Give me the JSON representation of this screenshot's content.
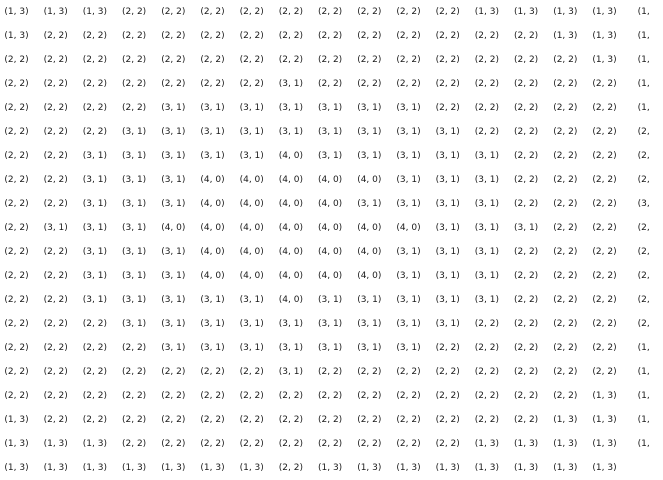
{
  "rows": [
    [
      "(1, 3)",
      "(1, 3)",
      "(1, 3)",
      "(2, 2)",
      "(2, 2)",
      "(2, 2)",
      "(2, 2)",
      "(2, 2)",
      "(2, 2)",
      "(2, 2)",
      "(2, 2)",
      "(2, 2)",
      "(1, 3)",
      "(1, 3)",
      "(1, 3)",
      "(1, 3)",
      "(1,"
    ],
    [
      "(1, 3)",
      "(2, 2)",
      "(2, 2)",
      "(2, 2)",
      "(2, 2)",
      "(2, 2)",
      "(2, 2)",
      "(2, 2)",
      "(2, 2)",
      "(2, 2)",
      "(2, 2)",
      "(2, 2)",
      "(2, 2)",
      "(2, 2)",
      "(1, 3)",
      "(1, 3)",
      "(1,"
    ],
    [
      "(2, 2)",
      "(2, 2)",
      "(2, 2)",
      "(2, 2)",
      "(2, 2)",
      "(2, 2)",
      "(2, 2)",
      "(2, 2)",
      "(2, 2)",
      "(2, 2)",
      "(2, 2)",
      "(2, 2)",
      "(2, 2)",
      "(2, 2)",
      "(2, 2)",
      "(1, 3)",
      "(1,"
    ],
    [
      "(2, 2)",
      "(2, 2)",
      "(2, 2)",
      "(2, 2)",
      "(2, 2)",
      "(2, 2)",
      "(2, 2)",
      "(3, 1)",
      "(2, 2)",
      "(2, 2)",
      "(2, 2)",
      "(2, 2)",
      "(2, 2)",
      "(2, 2)",
      "(2, 2)",
      "(2, 2)",
      "(1,"
    ],
    [
      "(2, 2)",
      "(2, 2)",
      "(2, 2)",
      "(2, 2)",
      "(3, 1)",
      "(3, 1)",
      "(3, 1)",
      "(3, 1)",
      "(3, 1)",
      "(3, 1)",
      "(3, 1)",
      "(2, 2)",
      "(2, 2)",
      "(2, 2)",
      "(2, 2)",
      "(2, 2)",
      "(1,"
    ],
    [
      "(2, 2)",
      "(2, 2)",
      "(2, 2)",
      "(3, 1)",
      "(3, 1)",
      "(3, 1)",
      "(3, 1)",
      "(3, 1)",
      "(3, 1)",
      "(3, 1)",
      "(3, 1)",
      "(3, 1)",
      "(2, 2)",
      "(2, 2)",
      "(2, 2)",
      "(2, 2)",
      "(2,"
    ],
    [
      "(2, 2)",
      "(2, 2)",
      "(3, 1)",
      "(3, 1)",
      "(3, 1)",
      "(3, 1)",
      "(3, 1)",
      "(4, 0)",
      "(3, 1)",
      "(3, 1)",
      "(3, 1)",
      "(3, 1)",
      "(3, 1)",
      "(2, 2)",
      "(2, 2)",
      "(2, 2)",
      "(2,"
    ],
    [
      "(2, 2)",
      "(2, 2)",
      "(3, 1)",
      "(3, 1)",
      "(3, 1)",
      "(4, 0)",
      "(4, 0)",
      "(4, 0)",
      "(4, 0)",
      "(4, 0)",
      "(3, 1)",
      "(3, 1)",
      "(3, 1)",
      "(2, 2)",
      "(2, 2)",
      "(2, 2)",
      "(2,"
    ],
    [
      "(2, 2)",
      "(2, 2)",
      "(3, 1)",
      "(3, 1)",
      "(3, 1)",
      "(4, 0)",
      "(4, 0)",
      "(4, 0)",
      "(4, 0)",
      "(3, 1)",
      "(3, 1)",
      "(3, 1)",
      "(3, 1)",
      "(2, 2)",
      "(2, 2)",
      "(2, 2)",
      "(3,"
    ],
    [
      "(2, 2)",
      "(3, 1)",
      "(3, 1)",
      "(3, 1)",
      "(4, 0)",
      "(4, 0)",
      "(4, 0)",
      "(4, 0)",
      "(4, 0)",
      "(4, 0)",
      "(4, 0)",
      "(3, 1)",
      "(3, 1)",
      "(3, 1)",
      "(2, 2)",
      "(2, 2)",
      "(2,"
    ],
    [
      "(2, 2)",
      "(2, 2)",
      "(3, 1)",
      "(3, 1)",
      "(3, 1)",
      "(4, 0)",
      "(4, 0)",
      "(4, 0)",
      "(4, 0)",
      "(4, 0)",
      "(3, 1)",
      "(3, 1)",
      "(3, 1)",
      "(2, 2)",
      "(2, 2)",
      "(2, 2)",
      "(2,"
    ],
    [
      "(2, 2)",
      "(2, 2)",
      "(3, 1)",
      "(3, 1)",
      "(3, 1)",
      "(4, 0)",
      "(4, 0)",
      "(4, 0)",
      "(4, 0)",
      "(4, 0)",
      "(3, 1)",
      "(3, 1)",
      "(3, 1)",
      "(2, 2)",
      "(2, 2)",
      "(2, 2)",
      "(2,"
    ],
    [
      "(2, 2)",
      "(2, 2)",
      "(3, 1)",
      "(3, 1)",
      "(3, 1)",
      "(3, 1)",
      "(3, 1)",
      "(4, 0)",
      "(3, 1)",
      "(3, 1)",
      "(3, 1)",
      "(3, 1)",
      "(3, 1)",
      "(2, 2)",
      "(2, 2)",
      "(2, 2)",
      "(2,"
    ],
    [
      "(2, 2)",
      "(2, 2)",
      "(2, 2)",
      "(3, 1)",
      "(3, 1)",
      "(3, 1)",
      "(3, 1)",
      "(3, 1)",
      "(3, 1)",
      "(3, 1)",
      "(3, 1)",
      "(3, 1)",
      "(2, 2)",
      "(2, 2)",
      "(2, 2)",
      "(2, 2)",
      "(2,"
    ],
    [
      "(2, 2)",
      "(2, 2)",
      "(2, 2)",
      "(2, 2)",
      "(3, 1)",
      "(3, 1)",
      "(3, 1)",
      "(3, 1)",
      "(3, 1)",
      "(3, 1)",
      "(3, 1)",
      "(2, 2)",
      "(2, 2)",
      "(2, 2)",
      "(2, 2)",
      "(2, 2)",
      "(1,"
    ],
    [
      "(2, 2)",
      "(2, 2)",
      "(2, 2)",
      "(2, 2)",
      "(2, 2)",
      "(2, 2)",
      "(2, 2)",
      "(3, 1)",
      "(2, 2)",
      "(2, 2)",
      "(2, 2)",
      "(2, 2)",
      "(2, 2)",
      "(2, 2)",
      "(2, 2)",
      "(2, 2)",
      "(1,"
    ],
    [
      "(2, 2)",
      "(2, 2)",
      "(2, 2)",
      "(2, 2)",
      "(2, 2)",
      "(2, 2)",
      "(2, 2)",
      "(2, 2)",
      "(2, 2)",
      "(2, 2)",
      "(2, 2)",
      "(2, 2)",
      "(2, 2)",
      "(2, 2)",
      "(2, 2)",
      "(1, 3)",
      "(1,"
    ],
    [
      "(1, 3)",
      "(2, 2)",
      "(2, 2)",
      "(2, 2)",
      "(2, 2)",
      "(2, 2)",
      "(2, 2)",
      "(2, 2)",
      "(2, 2)",
      "(2, 2)",
      "(2, 2)",
      "(2, 2)",
      "(2, 2)",
      "(2, 2)",
      "(1, 3)",
      "(1, 3)",
      "(1,"
    ],
    [
      "(1, 3)",
      "(1, 3)",
      "(1, 3)",
      "(2, 2)",
      "(2, 2)",
      "(2, 2)",
      "(2, 2)",
      "(2, 2)",
      "(2, 2)",
      "(2, 2)",
      "(2, 2)",
      "(2, 2)",
      "(1, 3)",
      "(1, 3)",
      "(1, 3)",
      "(1, 3)",
      "(1,"
    ],
    [
      "(1, 3)",
      "(1, 3)",
      "(1, 3)",
      "(1, 3)",
      "(1, 3)",
      "(1, 3)",
      "(1, 3)",
      "(2, 2)",
      "(1, 3)",
      "(1, 3)",
      "(1, 3)",
      "(1, 3)",
      "(1, 3)",
      "(1, 3)",
      "(1, 3)",
      "(1, 3)",
      ""
    ]
  ]
}
